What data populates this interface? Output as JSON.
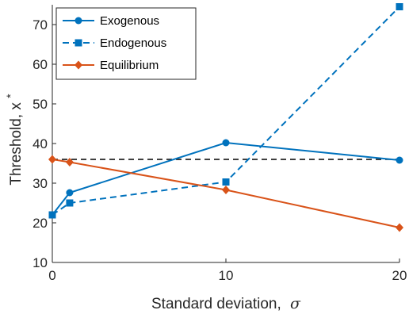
{
  "chart_data": {
    "type": "line",
    "xlabel": "Standard deviation,",
    "xlabel_symbol": "σ",
    "ylabel": "Threshold, x",
    "ylabel_superscript": "*",
    "xlim": [
      0,
      20
    ],
    "ylim": [
      10,
      75
    ],
    "xticks": [
      0,
      10,
      20
    ],
    "yticks": [
      10,
      20,
      30,
      40,
      50,
      60,
      70
    ],
    "grid": false,
    "legend_position": "top-left",
    "series": [
      {
        "name": "Exogenous",
        "color": "#0072BD",
        "style": "solid",
        "marker": "circle",
        "x": [
          0,
          1,
          10,
          20
        ],
        "y": [
          22,
          27.6,
          40.2,
          35.8
        ]
      },
      {
        "name": "Endogenous",
        "color": "#0072BD",
        "style": "dashed",
        "marker": "square",
        "x": [
          0,
          1,
          10,
          20
        ],
        "y": [
          22,
          25,
          30.3,
          74.5
        ]
      },
      {
        "name": "Equilibrium",
        "color": "#D95319",
        "style": "solid",
        "marker": "diamond",
        "x": [
          0,
          1,
          10,
          20
        ],
        "y": [
          36,
          35.3,
          28.3,
          18.8
        ]
      }
    ],
    "reference_lines": [
      {
        "y": 36,
        "color": "#000000",
        "style": "dashed"
      }
    ]
  }
}
